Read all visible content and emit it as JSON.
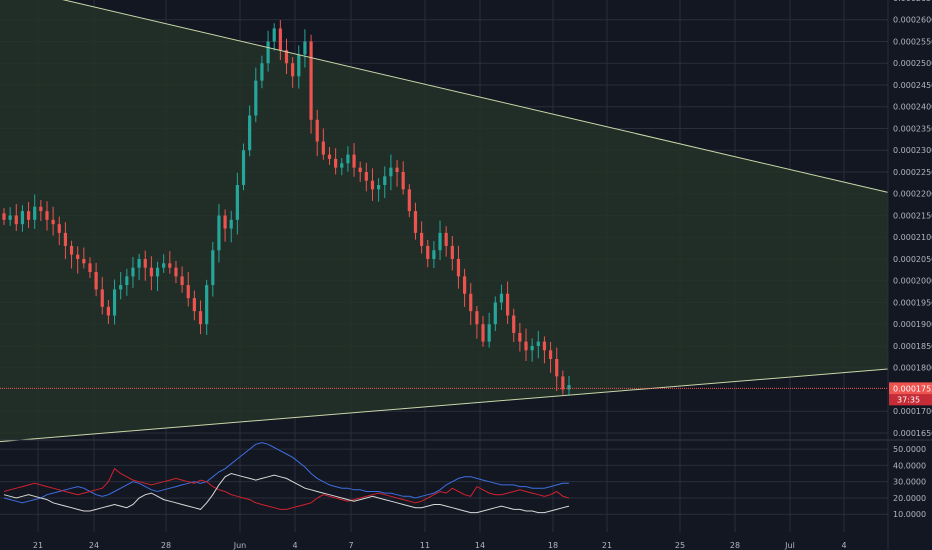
{
  "colors": {
    "background": "#131722",
    "grid": "#2a2e39",
    "up_candle": "#26a69a",
    "down_candle": "#ef5350",
    "triangle_fill": "#233328",
    "triangle_line": "#c9d6a8",
    "price_line": "#ef5350",
    "dmi_plus": "#3d6ee0",
    "dmi_minus": "#d0222e",
    "adx": "#d8d8d8",
    "axis_text": "#b2b5be"
  },
  "chart_data": [
    {
      "type": "candlestick",
      "title": "",
      "x_ticks": [
        "21",
        "24",
        "28",
        "Jun",
        "4",
        "7",
        "11",
        "14",
        "18",
        "21",
        "25",
        "28",
        "Jul",
        "4"
      ],
      "y_ticks": [
        "0.00026500",
        "0.00026000",
        "0.00025500",
        "0.00025000",
        "0.00024500",
        "0.00024000",
        "0.00023500",
        "0.00023000",
        "0.00022500",
        "0.00022000",
        "0.00021500",
        "0.00021000",
        "0.00020500",
        "0.00020000",
        "0.00019500",
        "0.00019000",
        "0.00018500",
        "0.00018000",
        "0.00017000",
        "0.00016500"
      ],
      "ylim": [
        0.000162,
        0.000265
      ],
      "current_price": "0.00017525",
      "current_price_value": 0.00017525,
      "countdown": "37:35",
      "trendlines": {
        "upper": [
          [
            0.0,
            0.000268
          ],
          [
            1.0,
            0.0002203
          ]
        ],
        "lower": [
          [
            0.0,
            0.000163
          ],
          [
            1.0,
            0.0001797
          ]
        ]
      },
      "closes": [
        0.000214,
        0.000215,
        0.000213,
        0.000216,
        0.000214,
        0.000217,
        0.000216,
        0.000214,
        0.000213,
        0.000211,
        0.000208,
        0.000206,
        0.000205,
        0.000204,
        0.000202,
        0.000198,
        0.000194,
        0.000192,
        0.000198,
        0.000199,
        0.000201,
        0.000203,
        0.000205,
        0.000203,
        0.000201,
        0.000203,
        0.000204,
        0.000203,
        0.000201,
        0.000199,
        0.000196,
        0.000193,
        0.00019,
        0.000199,
        0.000207,
        0.000215,
        0.000212,
        0.000214,
        0.000222,
        0.00023,
        0.000238,
        0.000246,
        0.00025,
        0.000255,
        0.000258,
        0.000253,
        0.00025,
        0.000247,
        0.000252,
        0.000255,
        0.000237,
        0.000232,
        0.000229,
        0.000228,
        0.000226,
        0.000227,
        0.000229,
        0.000226,
        0.000225,
        0.000223,
        0.000221,
        0.000222,
        0.000224,
        0.000226,
        0.000225,
        0.000221,
        0.000216,
        0.000211,
        0.000208,
        0.000205,
        0.000207,
        0.000211,
        0.000208,
        0.000205,
        0.000201,
        0.000197,
        0.000193,
        0.00019,
        0.000186,
        0.00019,
        0.000195,
        0.000197,
        0.000192,
        0.000188,
        0.000186,
        0.000184,
        0.000185,
        0.000186,
        0.000184,
        0.000182,
        0.000178,
        0.000175,
        0.000176
      ]
    },
    {
      "type": "line",
      "title": "",
      "y_ticks": [
        "50.0000",
        "40.0000",
        "30.0000",
        "20.0000",
        "10.0000"
      ],
      "ylim": [
        4,
        55
      ],
      "series": [
        {
          "values": [
            20,
            19,
            18,
            17,
            18,
            19,
            20,
            22,
            23,
            24,
            25,
            26,
            27,
            26,
            24,
            22,
            21,
            22,
            24,
            26,
            28,
            30,
            29,
            27,
            25,
            24,
            25,
            26,
            27,
            28,
            29,
            30,
            29,
            30,
            33,
            36,
            38,
            41,
            44,
            47,
            50,
            53,
            54,
            53,
            51,
            49,
            47,
            45,
            42,
            39,
            35,
            32,
            30,
            28,
            27,
            26,
            26,
            25,
            25,
            24,
            24,
            24,
            23,
            23,
            22,
            21,
            21,
            20,
            21,
            22,
            23,
            25,
            28,
            30,
            32,
            33,
            33,
            32,
            31,
            30,
            29,
            28,
            28,
            28,
            27,
            27,
            26,
            26,
            26,
            27,
            28,
            29,
            29
          ]
        },
        {
          "values": [
            24,
            25,
            26,
            27,
            28,
            29,
            28,
            27,
            26,
            25,
            24,
            23,
            22,
            23,
            24,
            25,
            26,
            30,
            38,
            35,
            33,
            31,
            30,
            29,
            28,
            29,
            30,
            31,
            32,
            31,
            30,
            29,
            31,
            30,
            27,
            25,
            24,
            22,
            21,
            20,
            19,
            17,
            16,
            15,
            14,
            13,
            13,
            14,
            15,
            16,
            17,
            20,
            22,
            21,
            20,
            19,
            18,
            19,
            20,
            21,
            22,
            23,
            22,
            21,
            20,
            19,
            18,
            17,
            18,
            20,
            22,
            24,
            23,
            26,
            24,
            22,
            21,
            27,
            25,
            23,
            22,
            22,
            23,
            24,
            25,
            24,
            23,
            22,
            21,
            22,
            24,
            21,
            20
          ]
        },
        {
          "values": [
            22,
            21,
            20,
            21,
            22,
            21,
            20,
            19,
            17,
            16,
            15,
            14,
            13,
            12,
            12,
            13,
            14,
            15,
            16,
            15,
            14,
            16,
            20,
            22,
            23,
            21,
            19,
            18,
            17,
            16,
            15,
            14,
            13,
            17,
            22,
            28,
            33,
            35,
            34,
            33,
            32,
            31,
            32,
            33,
            34,
            33,
            32,
            30,
            28,
            26,
            25,
            24,
            23,
            22,
            21,
            20,
            19,
            18,
            19,
            20,
            21,
            20,
            19,
            18,
            17,
            16,
            15,
            14,
            14,
            15,
            16,
            16,
            15,
            14,
            13,
            12,
            11,
            11,
            12,
            13,
            14,
            15,
            14,
            13,
            13,
            12,
            12,
            11,
            11,
            12,
            13,
            14,
            15
          ]
        }
      ]
    }
  ]
}
